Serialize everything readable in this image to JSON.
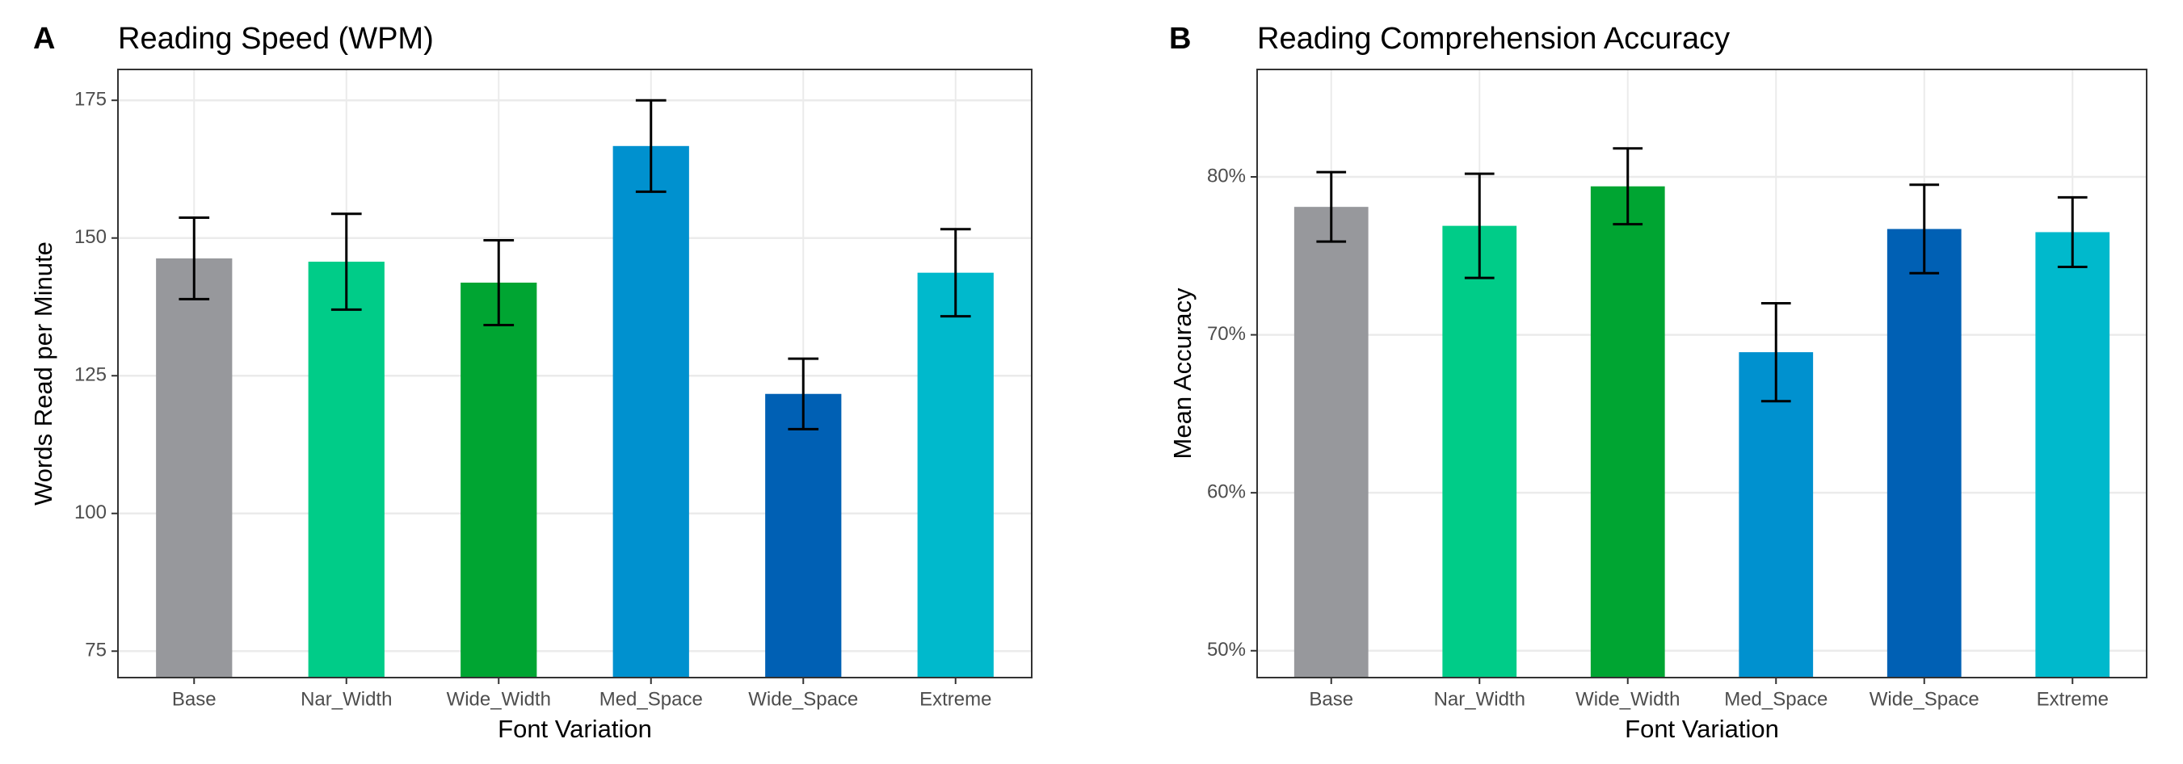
{
  "chart_data": [
    {
      "type": "bar",
      "panel_label": "A",
      "title": "Reading Speed (WPM)",
      "x_label": "Font Variation",
      "y_label": "Words Read per Minute",
      "categories": [
        "Base",
        "Nar_Width",
        "Wide_Width",
        "Med_Space",
        "Wide_Space",
        "Extreme"
      ],
      "values": [
        146.3,
        145.7,
        141.9,
        166.7,
        121.7,
        143.7
      ],
      "errors": [
        7.4,
        8.7,
        7.7,
        8.3,
        6.4,
        7.9
      ],
      "colors": [
        "#97989c",
        "#00cc88",
        "#00a532",
        "#0091cf",
        "#0060b4",
        "#00b9cc"
      ],
      "ylim": [
        70.2,
        180.6
      ],
      "yticks": [
        75,
        100,
        125,
        150,
        175
      ],
      "grid": true
    },
    {
      "type": "bar",
      "panel_label": "B",
      "title": "Reading Comprehension Accuracy",
      "x_label": "Font Variation",
      "y_label": "Mean Accuracy",
      "categories": [
        "Base",
        "Nar_Width",
        "Wide_Width",
        "Med_Space",
        "Wide_Space",
        "Extreme"
      ],
      "values": [
        78.1,
        76.9,
        79.4,
        68.9,
        76.7,
        76.5
      ],
      "errors": [
        2.2,
        3.3,
        2.4,
        3.1,
        2.8,
        2.2
      ],
      "colors": [
        "#97989c",
        "#00cc88",
        "#00a532",
        "#0091cf",
        "#0060b4",
        "#00b9cc"
      ],
      "ylim": [
        48.3,
        86.8
      ],
      "yticks": [
        {
          "value": 50,
          "label": "50%"
        },
        {
          "value": 60,
          "label": "60%"
        },
        {
          "value": 70,
          "label": "70%"
        },
        {
          "value": 80,
          "label": "80%"
        }
      ],
      "grid": true
    }
  ]
}
